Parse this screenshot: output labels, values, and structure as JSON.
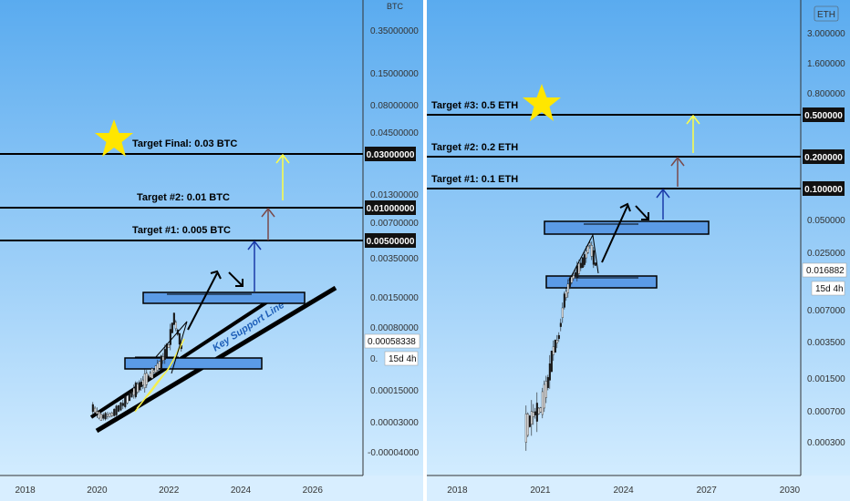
{
  "charts": [
    {
      "id": "btc",
      "type": "candlestick-log",
      "currency": "BTC",
      "x_ticks": [
        "2018",
        "2020",
        "2022",
        "2024",
        "2026"
      ],
      "x_range": [
        2017.3,
        2027.4
      ],
      "x_tick_values": [
        2018,
        2020,
        2022,
        2024,
        2026
      ],
      "y_ticks": [
        "0.35000000",
        "0.15000000",
        "0.08000000",
        "0.04500000",
        "0.01300000",
        "0.00700000",
        "0.00350000",
        "0.00150000",
        "0.00080000",
        "0.00015000",
        "0.00003000",
        "-0.00004000"
      ],
      "current_price": "0.00058338",
      "timeframe": "15d 4h",
      "targets": [
        {
          "label": "Target Final: 0.03 BTC",
          "price": "0.03000000"
        },
        {
          "label": "Target #2: 0.01 BTC",
          "price": "0.01000000"
        },
        {
          "label": "Target #1: 0.005 BTC",
          "price": "0.00500000"
        }
      ],
      "annotation": "Key Support Line"
    },
    {
      "id": "eth",
      "type": "candlestick-log",
      "currency": "ETH",
      "x_ticks": [
        "2018",
        "2021",
        "2024",
        "2027",
        "2030"
      ],
      "x_range": [
        2016.9,
        2030.4
      ],
      "x_tick_values": [
        2018,
        2021,
        2024,
        2027,
        2030
      ],
      "y_ticks": [
        "3.000000",
        "1.600000",
        "0.800000",
        "0.050000",
        "0.025000",
        "0.007000",
        "0.003500",
        "0.001500",
        "0.000700",
        "0.000300"
      ],
      "current_price": "0.016882",
      "timeframe": "15d 4h",
      "targets": [
        {
          "label": "Target #3: 0.5 ETH",
          "price": "0.500000"
        },
        {
          "label": "Target #2: 0.2 ETH",
          "price": "0.200000"
        },
        {
          "label": "Target #1: 0.1 ETH",
          "price": "0.100000"
        }
      ]
    }
  ],
  "colors": {
    "sky_top": "#5aabef",
    "sky_bottom": "#d2ecff",
    "target_line": "#000000",
    "zone_fill": "#5b9be6",
    "arrow_target1": "#1a3aa8",
    "arrow_target2": "#7a4a4a",
    "arrow_final": "#ffff44",
    "star": "#ffe600"
  }
}
